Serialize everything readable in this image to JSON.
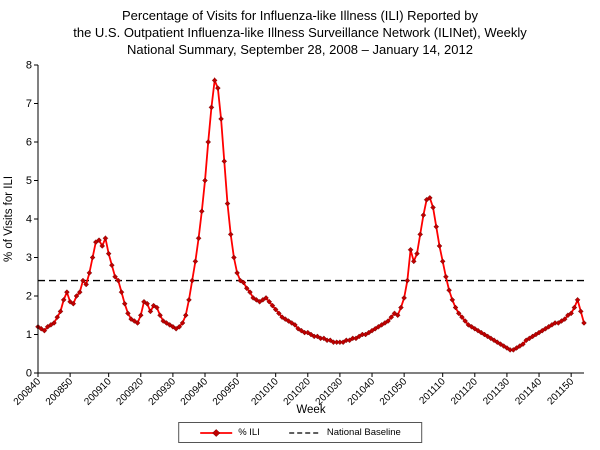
{
  "title": {
    "line1": "Percentage of Visits for Influenza-like Illness (ILI) Reported by",
    "line2": "the U.S. Outpatient Influenza-like Illness Surveillance Network (ILINet), Weekly",
    "line3": "National Summary, September 28, 2008 – January 14, 2012"
  },
  "chart_data": {
    "type": "line",
    "title": "Percentage of Visits for Influenza-like Illness (ILI) Reported by the U.S. Outpatient Influenza-like Illness Surveillance Network (ILINet), Weekly National Summary, September 28, 2008 – January 14, 2012",
    "xlabel": "Week",
    "ylabel": "% of Visits for ILI",
    "ylim": [
      0,
      8
    ],
    "y_tick_step": 1,
    "gridlines": false,
    "legend_position": "bottom",
    "x": [
      "200840",
      "200841",
      "200842",
      "200843",
      "200844",
      "200845",
      "200846",
      "200847",
      "200848",
      "200849",
      "200850",
      "200851",
      "200852",
      "200901",
      "200902",
      "200903",
      "200904",
      "200905",
      "200906",
      "200907",
      "200908",
      "200909",
      "200910",
      "200911",
      "200912",
      "200913",
      "200914",
      "200915",
      "200916",
      "200917",
      "200918",
      "200919",
      "200920",
      "200921",
      "200922",
      "200923",
      "200924",
      "200925",
      "200926",
      "200927",
      "200928",
      "200929",
      "200930",
      "200931",
      "200932",
      "200933",
      "200934",
      "200935",
      "200936",
      "200937",
      "200938",
      "200939",
      "200940",
      "200941",
      "200942",
      "200943",
      "200944",
      "200945",
      "200946",
      "200947",
      "200948",
      "200949",
      "200950",
      "200951",
      "200952",
      "201001",
      "201002",
      "201003",
      "201004",
      "201005",
      "201006",
      "201007",
      "201008",
      "201009",
      "201010",
      "201011",
      "201012",
      "201013",
      "201014",
      "201015",
      "201016",
      "201017",
      "201018",
      "201019",
      "201020",
      "201021",
      "201022",
      "201023",
      "201024",
      "201025",
      "201026",
      "201027",
      "201028",
      "201029",
      "201030",
      "201031",
      "201032",
      "201033",
      "201034",
      "201035",
      "201036",
      "201037",
      "201038",
      "201039",
      "201040",
      "201041",
      "201042",
      "201043",
      "201044",
      "201045",
      "201046",
      "201047",
      "201048",
      "201049",
      "201050",
      "201051",
      "201052",
      "201101",
      "201102",
      "201103",
      "201104",
      "201105",
      "201106",
      "201107",
      "201108",
      "201109",
      "201110",
      "201111",
      "201112",
      "201113",
      "201114",
      "201115",
      "201116",
      "201117",
      "201118",
      "201119",
      "201120",
      "201121",
      "201122",
      "201123",
      "201124",
      "201125",
      "201126",
      "201127",
      "201128",
      "201129",
      "201130",
      "201131",
      "201132",
      "201133",
      "201134",
      "201135",
      "201136",
      "201137",
      "201138",
      "201139",
      "201140",
      "201141",
      "201142",
      "201143",
      "201144",
      "201145",
      "201146",
      "201147",
      "201148",
      "201149",
      "201150",
      "201151",
      "201152",
      "201201",
      "201202"
    ],
    "x_ticks": [
      "200840",
      "200850",
      "200910",
      "200920",
      "200930",
      "200940",
      "200950",
      "201010",
      "201020",
      "201030",
      "201040",
      "201050",
      "201110",
      "201120",
      "201130",
      "201140",
      "201150"
    ],
    "series": [
      {
        "name": "% ILI",
        "type": "line",
        "color": "#FF0000",
        "marker": "diamond",
        "marker_color": "#C00000",
        "marker_edge_color": "#600000",
        "values": [
          1.2,
          1.15,
          1.1,
          1.2,
          1.25,
          1.3,
          1.45,
          1.6,
          1.9,
          2.1,
          1.85,
          1.8,
          2.0,
          2.1,
          2.4,
          2.3,
          2.6,
          3.0,
          3.4,
          3.45,
          3.3,
          3.5,
          3.1,
          2.8,
          2.5,
          2.4,
          2.1,
          1.8,
          1.55,
          1.4,
          1.35,
          1.3,
          1.5,
          1.85,
          1.8,
          1.6,
          1.75,
          1.7,
          1.5,
          1.35,
          1.3,
          1.25,
          1.2,
          1.15,
          1.2,
          1.3,
          1.5,
          1.9,
          2.4,
          2.9,
          3.5,
          4.2,
          5.0,
          6.0,
          6.9,
          7.6,
          7.4,
          6.6,
          5.5,
          4.4,
          3.6,
          3.0,
          2.6,
          2.4,
          2.35,
          2.2,
          2.1,
          1.95,
          1.9,
          1.85,
          1.9,
          1.95,
          1.85,
          1.75,
          1.65,
          1.55,
          1.45,
          1.4,
          1.35,
          1.3,
          1.25,
          1.15,
          1.1,
          1.05,
          1.05,
          1.0,
          0.95,
          0.95,
          0.9,
          0.9,
          0.85,
          0.85,
          0.8,
          0.8,
          0.8,
          0.8,
          0.85,
          0.85,
          0.9,
          0.9,
          0.95,
          1.0,
          1.0,
          1.05,
          1.1,
          1.15,
          1.2,
          1.25,
          1.3,
          1.35,
          1.45,
          1.55,
          1.5,
          1.7,
          1.95,
          2.4,
          3.2,
          2.9,
          3.1,
          3.6,
          4.1,
          4.5,
          4.55,
          4.3,
          3.8,
          3.3,
          2.9,
          2.5,
          2.15,
          1.9,
          1.7,
          1.55,
          1.45,
          1.35,
          1.25,
          1.2,
          1.15,
          1.1,
          1.05,
          1.0,
          0.95,
          0.9,
          0.85,
          0.8,
          0.75,
          0.7,
          0.65,
          0.6,
          0.6,
          0.65,
          0.7,
          0.75,
          0.85,
          0.9,
          0.95,
          1.0,
          1.05,
          1.1,
          1.15,
          1.2,
          1.25,
          1.3,
          1.3,
          1.35,
          1.4,
          1.5,
          1.55,
          1.7,
          1.9,
          1.6,
          1.3
        ]
      },
      {
        "name": "National Baseline",
        "type": "constant-line",
        "style": "dashed",
        "color": "#000000",
        "value": 2.4
      }
    ]
  }
}
